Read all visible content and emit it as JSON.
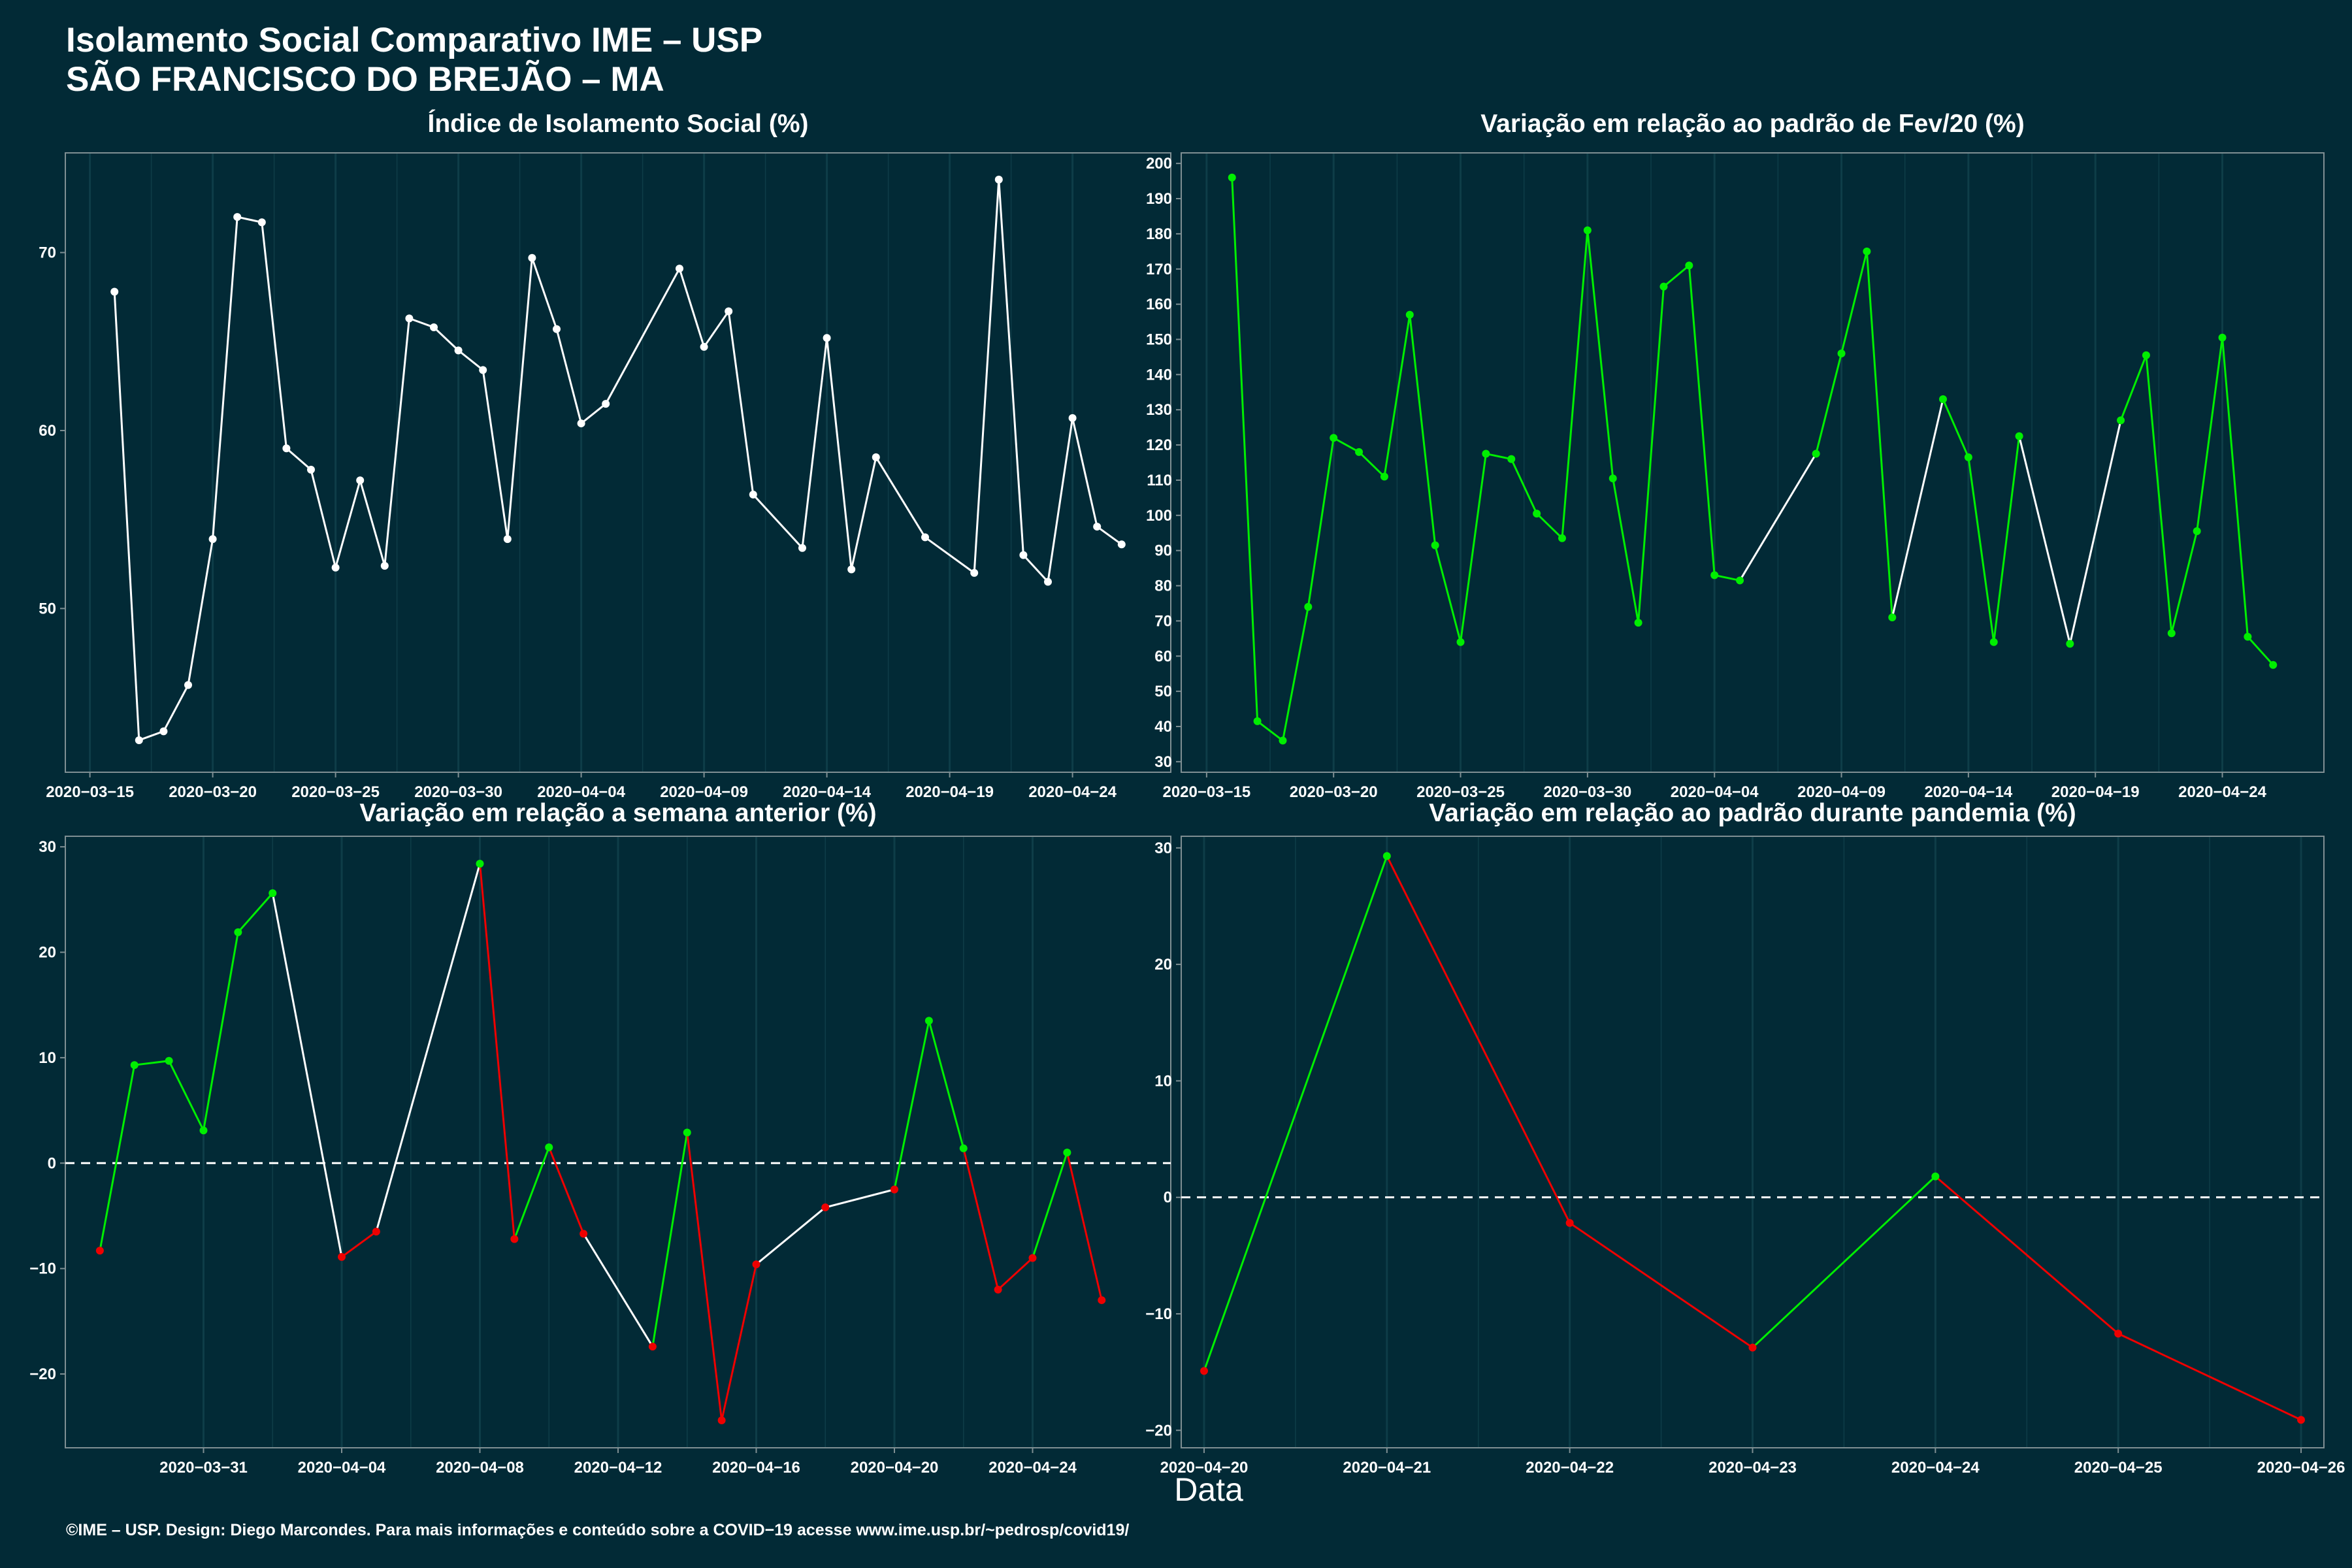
{
  "header": {
    "title_line1": "Isolamento Social Comparativo IME – USP",
    "title_line2": "SÃO FRANCISCO DO BREJÃO – MA"
  },
  "x_axis_title": "Data",
  "footer": "©IME – USP. Design: Diego Marcondes. Para mais informações e conteúdo sobre a COVID−19 acesse www.ime.usp.br/~pedrosp/covid19/",
  "colors": {
    "background": "#022a36",
    "line_neutral": "#ffffff",
    "increase": "#00ee00",
    "decrease": "#ee0000",
    "grid": "#0e3d48",
    "axis": "#7f8f93"
  },
  "chart_data": [
    {
      "type": "line",
      "title": "Índice de Isolamento Social (%)",
      "xlim": [
        "2020-03-14",
        "2020-04-28"
      ],
      "ylim": [
        40.8,
        75.6
      ],
      "x_ticks": [
        "2020-03-15",
        "2020-03-20",
        "2020-03-25",
        "2020-03-30",
        "2020-04-04",
        "2020-04-09",
        "2020-04-14",
        "2020-04-19",
        "2020-04-24"
      ],
      "y_ticks": [
        50,
        60,
        70
      ],
      "points": [
        {
          "x": "2020-03-16",
          "y": 67.8
        },
        {
          "x": "2020-03-17",
          "y": 42.6
        },
        {
          "x": "2020-03-18",
          "y": 43.1
        },
        {
          "x": "2020-03-19",
          "y": 45.7
        },
        {
          "x": "2020-03-20",
          "y": 53.9
        },
        {
          "x": "2020-03-21",
          "y": 72.0
        },
        {
          "x": "2020-03-22",
          "y": 71.7
        },
        {
          "x": "2020-03-23",
          "y": 59.0
        },
        {
          "x": "2020-03-24",
          "y": 57.8
        },
        {
          "x": "2020-03-25",
          "y": 52.3
        },
        {
          "x": "2020-03-26",
          "y": 57.2
        },
        {
          "x": "2020-03-27",
          "y": 52.4
        },
        {
          "x": "2020-03-28",
          "y": 66.3
        },
        {
          "x": "2020-03-29",
          "y": 65.8
        },
        {
          "x": "2020-03-30",
          "y": 64.5
        },
        {
          "x": "2020-03-31",
          "y": 63.4
        },
        {
          "x": "2020-04-01",
          "y": 53.9
        },
        {
          "x": "2020-04-02",
          "y": 69.7
        },
        {
          "x": "2020-04-03",
          "y": 65.7
        },
        {
          "x": "2020-04-04",
          "y": 60.4
        },
        {
          "x": "2020-04-05",
          "y": 61.5
        },
        {
          "x": "2020-04-08",
          "y": 69.1
        },
        {
          "x": "2020-04-09",
          "y": 64.7
        },
        {
          "x": "2020-04-10",
          "y": 66.7
        },
        {
          "x": "2020-04-11",
          "y": 56.4
        },
        {
          "x": "2020-04-13",
          "y": 53.4
        },
        {
          "x": "2020-04-14",
          "y": 65.2
        },
        {
          "x": "2020-04-15",
          "y": 52.2
        },
        {
          "x": "2020-04-16",
          "y": 58.5
        },
        {
          "x": "2020-04-18",
          "y": 54.0
        },
        {
          "x": "2020-04-20",
          "y": 52.0
        },
        {
          "x": "2020-04-21",
          "y": 74.1
        },
        {
          "x": "2020-04-22",
          "y": 53.0
        },
        {
          "x": "2020-04-23",
          "y": 51.5
        },
        {
          "x": "2020-04-24",
          "y": 60.7
        },
        {
          "x": "2020-04-25",
          "y": 54.6
        },
        {
          "x": "2020-04-26",
          "y": 53.6
        }
      ]
    },
    {
      "type": "line",
      "title": "Variação em relação ao padrão de Fev/20 (%)",
      "xlim": [
        "2020-03-14",
        "2020-04-28"
      ],
      "ylim": [
        27,
        203
      ],
      "x_ticks": [
        "2020-03-15",
        "2020-03-20",
        "2020-03-25",
        "2020-03-30",
        "2020-04-04",
        "2020-04-09",
        "2020-04-14",
        "2020-04-19",
        "2020-04-24"
      ],
      "y_ticks": [
        30,
        40,
        50,
        60,
        70,
        80,
        90,
        100,
        110,
        120,
        130,
        140,
        150,
        160,
        170,
        180,
        190,
        200
      ],
      "points": [
        {
          "x": "2020-03-16",
          "y": 196,
          "c": "increase"
        },
        {
          "x": "2020-03-17",
          "y": 41.5,
          "c": "increase"
        },
        {
          "x": "2020-03-18",
          "y": 36,
          "c": "increase"
        },
        {
          "x": "2020-03-19",
          "y": 74,
          "c": "increase"
        },
        {
          "x": "2020-03-20",
          "y": 122,
          "c": "increase"
        },
        {
          "x": "2020-03-21",
          "y": 118,
          "c": "increase"
        },
        {
          "x": "2020-03-22",
          "y": 111,
          "c": "increase"
        },
        {
          "x": "2020-03-23",
          "y": 157,
          "c": "increase"
        },
        {
          "x": "2020-03-24",
          "y": 91.5,
          "c": "increase"
        },
        {
          "x": "2020-03-25",
          "y": 64,
          "c": "increase"
        },
        {
          "x": "2020-03-26",
          "y": 117.5,
          "c": "increase"
        },
        {
          "x": "2020-03-27",
          "y": 116,
          "c": "increase"
        },
        {
          "x": "2020-03-28",
          "y": 100.5,
          "c": "increase"
        },
        {
          "x": "2020-03-29",
          "y": 93.5,
          "c": "increase"
        },
        {
          "x": "2020-03-30",
          "y": 181,
          "c": "increase"
        },
        {
          "x": "2020-03-31",
          "y": 110.5,
          "c": "increase"
        },
        {
          "x": "2020-04-01",
          "y": 69.5,
          "c": "increase"
        },
        {
          "x": "2020-04-02",
          "y": 165,
          "c": "increase"
        },
        {
          "x": "2020-04-03",
          "y": 171,
          "c": "increase"
        },
        {
          "x": "2020-04-04",
          "y": 83,
          "c": "increase"
        },
        {
          "x": "2020-04-05",
          "y": 81.5,
          "c": "increase"
        },
        {
          "x": "2020-04-08",
          "y": 117.5,
          "c": "increase"
        },
        {
          "x": "2020-04-09",
          "y": 146,
          "c": "increase"
        },
        {
          "x": "2020-04-10",
          "y": 175,
          "c": "increase"
        },
        {
          "x": "2020-04-11",
          "y": 71,
          "c": "increase"
        },
        {
          "x": "2020-04-13",
          "y": 133,
          "c": "increase"
        },
        {
          "x": "2020-04-14",
          "y": 116.5,
          "c": "increase"
        },
        {
          "x": "2020-04-15",
          "y": 64,
          "c": "increase"
        },
        {
          "x": "2020-04-16",
          "y": 122.5,
          "c": "increase"
        },
        {
          "x": "2020-04-18",
          "y": 63.5,
          "c": "increase"
        },
        {
          "x": "2020-04-20",
          "y": 127,
          "c": "increase"
        },
        {
          "x": "2020-04-21",
          "y": 145.5,
          "c": "increase"
        },
        {
          "x": "2020-04-22",
          "y": 66.5,
          "c": "increase"
        },
        {
          "x": "2020-04-23",
          "y": 95.5,
          "c": "increase"
        },
        {
          "x": "2020-04-24",
          "y": 150.5,
          "c": "increase"
        },
        {
          "x": "2020-04-25",
          "y": 65.5,
          "c": "increase"
        },
        {
          "x": "2020-04-26",
          "y": 57.5,
          "c": "increase"
        }
      ]
    },
    {
      "type": "line",
      "title": "Variação em relação a semana anterior (%)",
      "xlim": [
        "2020-03-27",
        "2020-04-28"
      ],
      "ylim": [
        -27,
        31
      ],
      "x_ticks": [
        "2020-03-31",
        "2020-04-04",
        "2020-04-08",
        "2020-04-12",
        "2020-04-16",
        "2020-04-20",
        "2020-04-24"
      ],
      "y_ticks": [
        -20,
        -10,
        0,
        10,
        20,
        30
      ],
      "reference_line": 0,
      "points": [
        {
          "x": "2020-03-28",
          "y": -8.3,
          "c": "decrease"
        },
        {
          "x": "2020-03-29",
          "y": 9.3,
          "c": "increase"
        },
        {
          "x": "2020-03-30",
          "y": 9.7,
          "c": "increase"
        },
        {
          "x": "2020-03-31",
          "y": 3.1,
          "c": "increase"
        },
        {
          "x": "2020-04-01",
          "y": 21.9,
          "c": "increase"
        },
        {
          "x": "2020-04-02",
          "y": 25.6,
          "c": "increase"
        },
        {
          "x": "2020-04-04",
          "y": -8.9,
          "c": "decrease"
        },
        {
          "x": "2020-04-05",
          "y": -6.5,
          "c": "decrease"
        },
        {
          "x": "2020-04-08",
          "y": 28.4,
          "c": "increase"
        },
        {
          "x": "2020-04-09",
          "y": -7.2,
          "c": "decrease"
        },
        {
          "x": "2020-04-10",
          "y": 1.5,
          "c": "increase"
        },
        {
          "x": "2020-04-11",
          "y": -6.7,
          "c": "decrease"
        },
        {
          "x": "2020-04-13",
          "y": -17.4,
          "c": "decrease"
        },
        {
          "x": "2020-04-14",
          "y": 2.9,
          "c": "increase"
        },
        {
          "x": "2020-04-15",
          "y": -24.4,
          "c": "decrease"
        },
        {
          "x": "2020-04-16",
          "y": -9.6,
          "c": "decrease"
        },
        {
          "x": "2020-04-18",
          "y": -4.2,
          "c": "decrease"
        },
        {
          "x": "2020-04-20",
          "y": -2.5,
          "c": "decrease"
        },
        {
          "x": "2020-04-21",
          "y": 13.5,
          "c": "increase"
        },
        {
          "x": "2020-04-22",
          "y": 1.4,
          "c": "increase"
        },
        {
          "x": "2020-04-23",
          "y": -12.0,
          "c": "decrease"
        },
        {
          "x": "2020-04-24",
          "y": -9.0,
          "c": "decrease"
        },
        {
          "x": "2020-04-25",
          "y": 1.0,
          "c": "increase"
        },
        {
          "x": "2020-04-26",
          "y": -13.0,
          "c": "decrease"
        }
      ]
    },
    {
      "type": "line",
      "title": "Variação em relação ao padrão durante pandemia (%)",
      "xlim": [
        "2020-04-19 21:00",
        "2020-04-26 03:00"
      ],
      "ylim": [
        -21.5,
        31
      ],
      "x_ticks": [
        "2020-04-20",
        "2020-04-21",
        "2020-04-22",
        "2020-04-23",
        "2020-04-24",
        "2020-04-25",
        "2020-04-26"
      ],
      "y_ticks": [
        -20,
        -10,
        0,
        10,
        20,
        30
      ],
      "reference_line": 0,
      "points": [
        {
          "x": "2020-04-20",
          "y": -14.9,
          "c": "decrease"
        },
        {
          "x": "2020-04-21",
          "y": 29.3,
          "c": "increase"
        },
        {
          "x": "2020-04-22",
          "y": -2.2,
          "c": "decrease"
        },
        {
          "x": "2020-04-23",
          "y": -12.9,
          "c": "decrease"
        },
        {
          "x": "2020-04-24",
          "y": 1.8,
          "c": "increase"
        },
        {
          "x": "2020-04-25",
          "y": -11.7,
          "c": "decrease"
        },
        {
          "x": "2020-04-26",
          "y": -19.1,
          "c": "decrease"
        }
      ]
    }
  ]
}
